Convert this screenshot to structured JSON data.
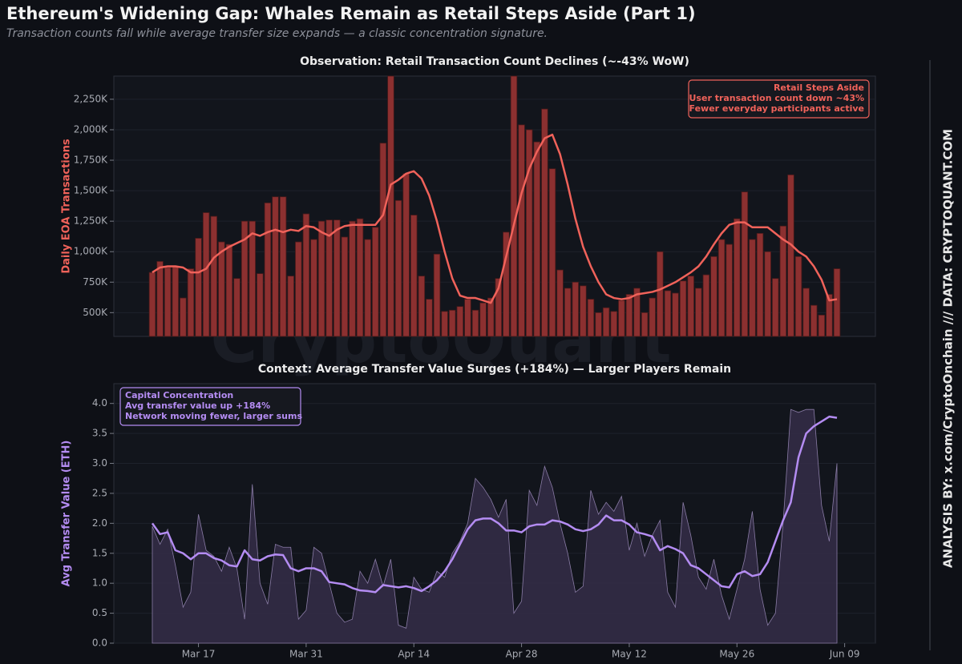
{
  "header": {
    "title": "Ethereum's Widening Gap: Whales Remain as Retail Steps Aside (Part 1)",
    "subtitle": "Transaction counts fall while average transfer size expands — a classic concentration signature."
  },
  "watermark": "CryptoQuant",
  "sidebar": "ANALYSIS BY: x.com/CryptoOnchain   ///   DATA: CRYPTOQUANT.COM",
  "chart_data": [
    {
      "type": "bar",
      "title": "Observation: Retail Transaction Count Declines (~-43% WoW)",
      "ylabel": "Daily EOA Transactions",
      "x": [
        "Mar 11",
        "Mar 12",
        "Mar 13",
        "Mar 14",
        "Mar 15",
        "Mar 16",
        "Mar 17",
        "Mar 18",
        "Mar 19",
        "Mar 20",
        "Mar 21",
        "Mar 22",
        "Mar 23",
        "Mar 24",
        "Mar 25",
        "Mar 26",
        "Mar 27",
        "Mar 28",
        "Mar 29",
        "Mar 30",
        "Mar 31",
        "Apr 01",
        "Apr 02",
        "Apr 03",
        "Apr 04",
        "Apr 05",
        "Apr 06",
        "Apr 07",
        "Apr 08",
        "Apr 09",
        "Apr 10",
        "Apr 11",
        "Apr 12",
        "Apr 13",
        "Apr 14",
        "Apr 15",
        "Apr 16",
        "Apr 17",
        "Apr 18",
        "Apr 19",
        "Apr 20",
        "Apr 21",
        "Apr 22",
        "Apr 23",
        "Apr 24",
        "Apr 25",
        "Apr 26",
        "Apr 27",
        "Apr 28",
        "Apr 29",
        "Apr 30",
        "May 01",
        "May 02",
        "May 03",
        "May 04",
        "May 05",
        "May 06",
        "May 07",
        "May 08",
        "May 09",
        "May 10",
        "May 11",
        "May 12",
        "May 13",
        "May 14",
        "May 15",
        "May 16",
        "May 17",
        "May 18",
        "May 19",
        "May 20",
        "May 21",
        "May 22",
        "May 23",
        "May 24",
        "May 25",
        "May 26",
        "May 27",
        "May 28",
        "May 29",
        "May 30",
        "May 31",
        "Jun 01",
        "Jun 02",
        "Jun 03",
        "Jun 04",
        "Jun 05",
        "Jun 06",
        "Jun 07",
        "Jun 08"
      ],
      "xlim": [
        "Mar 06",
        "Jun 13"
      ],
      "series": [
        {
          "kind": "bar",
          "color": "#8c3030",
          "values": [
            830000,
            920000,
            870000,
            880000,
            620000,
            860000,
            1110000,
            1320000,
            1290000,
            1080000,
            1060000,
            780000,
            1250000,
            1250000,
            820000,
            1400000,
            1450000,
            1450000,
            800000,
            1080000,
            1310000,
            1100000,
            1250000,
            1260000,
            1260000,
            1120000,
            1250000,
            1270000,
            1100000,
            1200000,
            1890000,
            2440000,
            1420000,
            1640000,
            1300000,
            800000,
            610000,
            980000,
            510000,
            520000,
            550000,
            610000,
            520000,
            580000,
            620000,
            780000,
            1160000,
            2440000,
            2040000,
            2000000,
            1900000,
            2170000,
            1680000,
            850000,
            700000,
            750000,
            720000,
            610000,
            500000,
            540000,
            510000,
            600000,
            650000,
            700000,
            500000,
            620000,
            1000000,
            680000,
            660000,
            760000,
            800000,
            700000,
            810000,
            960000,
            1100000,
            1060000,
            1270000,
            1490000,
            1100000,
            1150000,
            1000000,
            780000,
            1210000,
            1630000,
            960000,
            700000,
            560000,
            480000,
            650000,
            860000
          ]
        },
        {
          "kind": "line",
          "color": "#f0625a",
          "values": [
            830000,
            870000,
            880000,
            880000,
            870000,
            830000,
            830000,
            860000,
            950000,
            1000000,
            1040000,
            1070000,
            1100000,
            1150000,
            1130000,
            1160000,
            1180000,
            1160000,
            1180000,
            1170000,
            1210000,
            1200000,
            1160000,
            1130000,
            1180000,
            1210000,
            1220000,
            1220000,
            1220000,
            1220000,
            1300000,
            1550000,
            1590000,
            1640000,
            1660000,
            1600000,
            1460000,
            1250000,
            1000000,
            780000,
            640000,
            620000,
            620000,
            600000,
            580000,
            700000,
            960000,
            1220000,
            1480000,
            1680000,
            1820000,
            1930000,
            1960000,
            1800000,
            1550000,
            1270000,
            1040000,
            880000,
            750000,
            650000,
            620000,
            610000,
            620000,
            650000,
            660000,
            670000,
            690000,
            720000,
            750000,
            790000,
            830000,
            880000,
            960000,
            1060000,
            1150000,
            1220000,
            1240000,
            1240000,
            1200000,
            1200000,
            1200000,
            1150000,
            1100000,
            1060000,
            1000000,
            960000,
            880000,
            770000,
            600000,
            610000
          ]
        }
      ],
      "ylim": [
        305000,
        2440000
      ],
      "yticks": [
        {
          "value": 500000,
          "label": "500K"
        },
        {
          "value": 750000,
          "label": "750K"
        },
        {
          "value": 1000000,
          "label": "1,000K"
        },
        {
          "value": 1250000,
          "label": "1,250K"
        },
        {
          "value": 1500000,
          "label": "1,500K"
        },
        {
          "value": 1750000,
          "label": "1,750K"
        },
        {
          "value": 2000000,
          "label": "2,000K"
        },
        {
          "value": 2250000,
          "label": "2,250K"
        }
      ],
      "grid": true,
      "annotation": [
        "Retail Steps Aside",
        "User transaction count down ~43%",
        "Fewer everyday participants active"
      ],
      "annotation_corner": "upper right",
      "annotation_color": "#f0625a"
    },
    {
      "type": "area",
      "title": "Context: Average Transfer Value Surges (+184%) — Larger Players Remain",
      "ylabel": "Avg Transfer Value (ETH)",
      "x": [
        "Mar 11",
        "Mar 12",
        "Mar 13",
        "Mar 14",
        "Mar 15",
        "Mar 16",
        "Mar 17",
        "Mar 18",
        "Mar 19",
        "Mar 20",
        "Mar 21",
        "Mar 22",
        "Mar 23",
        "Mar 24",
        "Mar 25",
        "Mar 26",
        "Mar 27",
        "Mar 28",
        "Mar 29",
        "Mar 30",
        "Mar 31",
        "Apr 01",
        "Apr 02",
        "Apr 03",
        "Apr 04",
        "Apr 05",
        "Apr 06",
        "Apr 07",
        "Apr 08",
        "Apr 09",
        "Apr 10",
        "Apr 11",
        "Apr 12",
        "Apr 13",
        "Apr 14",
        "Apr 15",
        "Apr 16",
        "Apr 17",
        "Apr 18",
        "Apr 19",
        "Apr 20",
        "Apr 21",
        "Apr 22",
        "Apr 23",
        "Apr 24",
        "Apr 25",
        "Apr 26",
        "Apr 27",
        "Apr 28",
        "Apr 29",
        "Apr 30",
        "May 01",
        "May 02",
        "May 03",
        "May 04",
        "May 05",
        "May 06",
        "May 07",
        "May 08",
        "May 09",
        "May 10",
        "May 11",
        "May 12",
        "May 13",
        "May 14",
        "May 15",
        "May 16",
        "May 17",
        "May 18",
        "May 19",
        "May 20",
        "May 21",
        "May 22",
        "May 23",
        "May 24",
        "May 25",
        "May 26",
        "May 27",
        "May 28",
        "May 29",
        "May 30",
        "May 31",
        "Jun 01",
        "Jun 02",
        "Jun 03",
        "Jun 04",
        "Jun 05",
        "Jun 06",
        "Jun 07",
        "Jun 08"
      ],
      "xlim": [
        "Mar 06",
        "Jun 13"
      ],
      "xticks": [
        "Mar 17",
        "Mar 31",
        "Apr 14",
        "Apr 28",
        "May 12",
        "May 26",
        "Jun 09"
      ],
      "series": [
        {
          "kind": "area",
          "color": "#8a7ca6",
          "fill": "#352d48",
          "values": [
            1.95,
            1.65,
            1.9,
            1.3,
            0.6,
            0.85,
            2.15,
            1.55,
            1.45,
            1.2,
            1.6,
            1.25,
            0.4,
            2.65,
            1.0,
            0.65,
            1.65,
            1.6,
            1.6,
            0.4,
            0.55,
            1.6,
            1.5,
            1.0,
            0.5,
            0.35,
            0.4,
            1.2,
            1.0,
            1.4,
            0.95,
            1.4,
            0.3,
            0.25,
            1.1,
            0.9,
            0.85,
            1.2,
            1.1,
            1.5,
            1.7,
            2.0,
            2.75,
            2.6,
            2.4,
            2.1,
            2.4,
            0.5,
            0.7,
            2.55,
            2.3,
            2.95,
            2.6,
            2.0,
            1.5,
            0.85,
            0.95,
            2.55,
            2.15,
            2.35,
            2.2,
            2.45,
            1.55,
            2.0,
            1.45,
            1.8,
            2.05,
            0.85,
            0.6,
            2.35,
            1.8,
            1.1,
            0.9,
            1.4,
            0.8,
            0.4,
            0.9,
            1.4,
            2.2,
            0.9,
            0.3,
            0.5,
            2.0,
            3.9,
            3.85,
            3.9,
            3.9,
            2.3,
            1.7,
            3.0
          ]
        },
        {
          "kind": "line",
          "color": "#b48cf2",
          "values": [
            2.0,
            1.82,
            1.85,
            1.55,
            1.5,
            1.4,
            1.5,
            1.5,
            1.42,
            1.38,
            1.3,
            1.28,
            1.55,
            1.4,
            1.38,
            1.45,
            1.48,
            1.47,
            1.25,
            1.2,
            1.25,
            1.25,
            1.2,
            1.02,
            1.0,
            0.98,
            0.92,
            0.88,
            0.87,
            0.85,
            0.97,
            0.95,
            0.93,
            0.95,
            0.92,
            0.87,
            0.95,
            1.05,
            1.2,
            1.4,
            1.65,
            1.9,
            2.05,
            2.08,
            2.08,
            2.0,
            1.88,
            1.88,
            1.85,
            1.95,
            1.98,
            1.98,
            2.05,
            2.03,
            1.98,
            1.9,
            1.87,
            1.9,
            1.98,
            2.13,
            2.05,
            2.05,
            1.98,
            1.85,
            1.82,
            1.78,
            1.55,
            1.62,
            1.57,
            1.5,
            1.3,
            1.25,
            1.15,
            1.05,
            0.95,
            0.93,
            1.15,
            1.2,
            1.12,
            1.15,
            1.35,
            1.7,
            2.05,
            2.35,
            3.1,
            3.5,
            3.62,
            3.7,
            3.78,
            3.76
          ]
        }
      ],
      "ylim": [
        0,
        4.33
      ],
      "yticks": [
        {
          "value": 0,
          "label": "0.0"
        },
        0.5,
        {
          "value": 1,
          "label": "1.0"
        },
        1.5,
        {
          "value": 2,
          "label": "2.0"
        },
        2.5,
        {
          "value": 3,
          "label": "3.0"
        },
        3.5,
        {
          "value": 4,
          "label": "4.0"
        }
      ],
      "grid": true,
      "annotation": [
        "Capital Concentration",
        "Avg transfer value up +184%",
        "Network moving fewer, larger sums"
      ],
      "annotation_corner": "upper left",
      "annotation_color": "#b48cf2"
    }
  ]
}
